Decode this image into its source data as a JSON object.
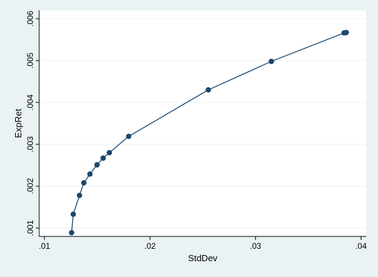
{
  "chart_data": {
    "type": "line",
    "title": "",
    "xlabel": "StdDev",
    "ylabel": "ExpRet",
    "xlim": [
      0.0095,
      0.0405
    ],
    "ylim": [
      0.0008,
      0.0062
    ],
    "x_ticks": [
      0.01,
      0.02,
      0.03,
      0.04
    ],
    "x_tick_labels": [
      ".01",
      ".02",
      ".03",
      ".04"
    ],
    "y_ticks": [
      0.001,
      0.002,
      0.003,
      0.004,
      0.005,
      0.006
    ],
    "y_tick_labels": [
      ".001",
      ".002",
      ".003",
      ".004",
      ".005",
      ".006"
    ],
    "grid": "horizontal",
    "markers": true,
    "series": [
      {
        "x": [
          0.01257,
          0.01273,
          0.01332,
          0.01373,
          0.01431,
          0.01498,
          0.01556,
          0.01615,
          0.01798,
          0.02553,
          0.0315,
          0.0384,
          0.0386
        ],
        "y": [
          0.00089,
          0.00133,
          0.00178,
          0.00208,
          0.00229,
          0.00251,
          0.00267,
          0.0028,
          0.00319,
          0.0043,
          0.00498,
          0.00566,
          0.00567
        ]
      }
    ],
    "colors": {
      "line": "#1a476f",
      "marker": "#1a476f",
      "plot_background": "#ffffff",
      "outer_background": "#eaf2f3",
      "grid": "#eaf2f3"
    }
  }
}
